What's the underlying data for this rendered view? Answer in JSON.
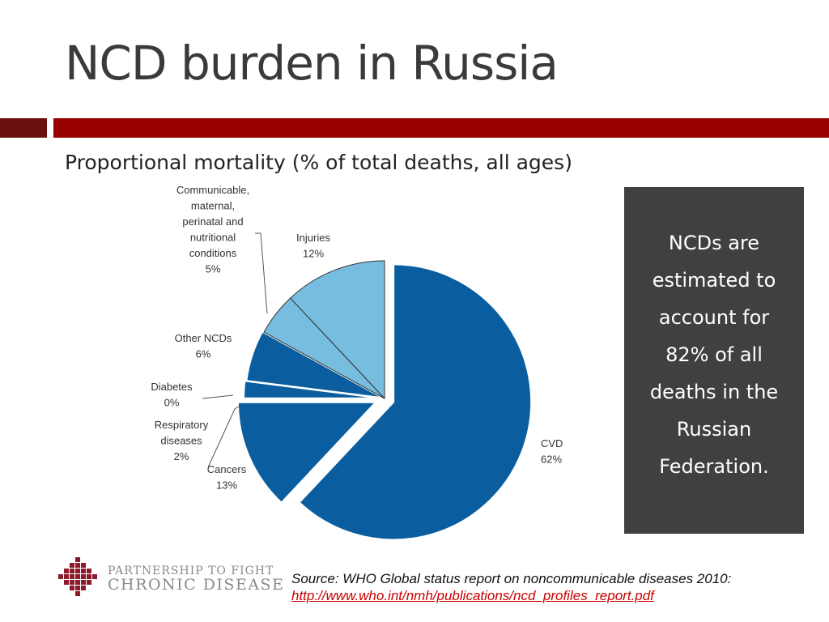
{
  "slide": {
    "title": "NCD burden in Russia",
    "subtitle": "Proportional mortality (% of total deaths, all ages)"
  },
  "callout": {
    "lines": [
      "NCDs are",
      "estimated to",
      "account for",
      "82% of all",
      "deaths in the",
      "Russian",
      "Federation."
    ]
  },
  "logo": {
    "line1": "PARTNERSHIP TO FIGHT",
    "line2": "CHRONIC DISEASE"
  },
  "source": {
    "text": "Source:  WHO Global status report on noncommunicable diseases 2010:",
    "link": "http://www.who.int/nmh/publications/ncd_profiles_report.pdf"
  },
  "colors": {
    "ncd_dark": "#0A5E9F",
    "non_ncd_light": "#77BDE0",
    "accent_red": "#990000",
    "accent_dark_red": "#6B0F0F",
    "panel_bg": "#404040"
  },
  "chart_data": {
    "type": "pie",
    "title": "",
    "slices": [
      {
        "label": "CVD",
        "value": 62,
        "label_text": "CVD",
        "pct_text": "62%"
      },
      {
        "label": "Cancers",
        "value": 13,
        "label_text": "Cancers",
        "pct_text": "13%"
      },
      {
        "label": "Respiratory diseases",
        "value": 2,
        "label_text": "Respiratory|diseases",
        "pct_text": "2%"
      },
      {
        "label": "Diabetes",
        "value": 0,
        "label_text": "Diabetes",
        "pct_text": "0%"
      },
      {
        "label": "Other NCDs",
        "value": 6,
        "label_text": "Other NCDs",
        "pct_text": "6%"
      },
      {
        "label": "Communicable, maternal, perinatal and nutritional conditions",
        "value": 5,
        "label_text": "Communicable,|maternal,|perinatal and|nutritional|conditions",
        "pct_text": "5%"
      },
      {
        "label": "Injuries",
        "value": 12,
        "label_text": "Injuries",
        "pct_text": "12%"
      }
    ]
  }
}
